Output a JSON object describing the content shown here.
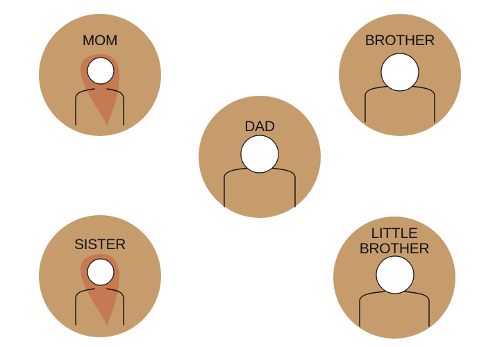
{
  "colors": {
    "disc": "#c69c6d",
    "hair": "#c57a52",
    "face": "#ffffff",
    "outline": "#111111",
    "background": "#ffffff"
  },
  "members": [
    {
      "id": "mom",
      "label": "MOM",
      "figure": "female",
      "face_icon": "woman-figure-icon"
    },
    {
      "id": "brother",
      "label": "BROTHER",
      "figure": "male",
      "face_icon": "man-figure-icon"
    },
    {
      "id": "dad",
      "label": "DAD",
      "figure": "male",
      "face_icon": "man-figure-icon"
    },
    {
      "id": "sister",
      "label": "SISTER",
      "figure": "female",
      "face_icon": "woman-figure-icon"
    },
    {
      "id": "little_brother",
      "label": "LITTLE\nBROTHER",
      "figure": "male",
      "face_icon": "man-figure-icon"
    }
  ]
}
